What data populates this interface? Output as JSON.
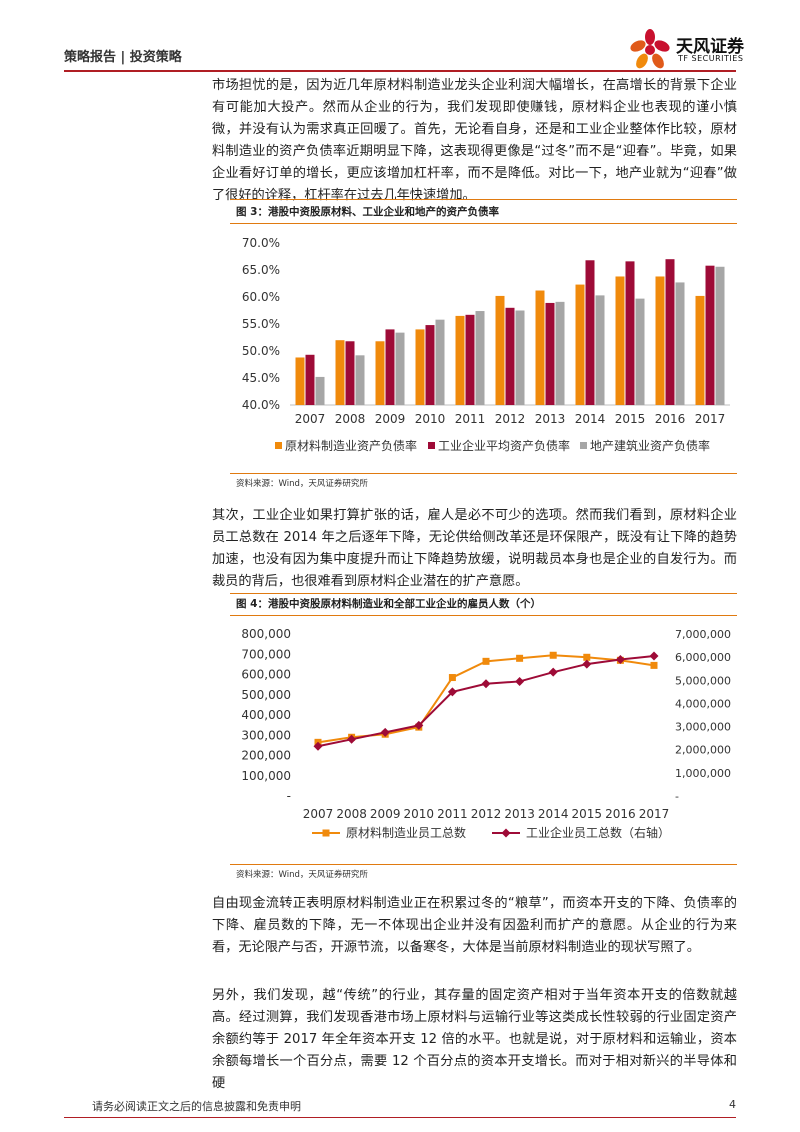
{
  "header": {
    "section": "策略报告 | 投资策略",
    "logo_cn": "天风证券",
    "logo_en": "TF SECURITIES"
  },
  "paragraphs": {
    "p1": "市场担忧的是，因为近几年原材料制造业龙头企业利润大幅增长，在高增长的背景下企业有可能加大投产。然而从企业的行为，我们发现即使赚钱，原材料企业也表现的谨小慎微，并没有认为需求真正回暖了。首先，无论看自身，还是和工业企业整体作比较，原材料制造业的资产负债率近期明显下降，这表现得更像是“过冬”而不是“迎春”。毕竟，如果企业看好订单的增长，更应该增加杠杆率，而不是降低。对比一下，地产业就为“迎春”做了很好的诠释，杠杆率在过去几年快速增加。",
    "p2": "其次，工业企业如果打算扩张的话，雇人是必不可少的选项。然而我们看到，原材料企业员工总数在 2014 年之后逐年下降，无论供给侧改革还是环保限产，既没有让下降的趋势加速，也没有因为集中度提升而让下降趋势放缓，说明裁员本身也是企业的自发行为。而裁员的背后，也很难看到原材料企业潜在的扩产意愿。",
    "p3": "自由现金流转正表明原材料制造业正在积累过冬的“粮草”，而资本开支的下降、负债率的下降、雇员数的下降，无一不体现出企业并没有因盈利而扩产的意愿。从企业的行为来看，无论限产与否，开源节流，以备寒冬，大体是当前原材料制造业的现状写照了。",
    "p4": "另外，我们发现，越“传统”的行业，其存量的固定资产相对于当年资本开支的倍数就越高。经过测算，我们发现香港市场上原材料与运输行业等这类成长性较弱的行业固定资产余额约等于 2017 年全年资本开支 12 倍的水平。也就是说，对于原材料和运输业，资本余额每增长一个百分点，需要 12 个百分点的资本开支增长。而对于相对新兴的半导体和硬"
  },
  "figure3": {
    "title": "图 3：港股中资股原材料、工业企业和地产的资产负债率",
    "source": "资料来源：Wind，天风证券研究所"
  },
  "figure4": {
    "title": "图 4：港股中资股原材料制造业和全部工业企业的雇员人数（个）",
    "source": "资料来源：Wind，天风证券研究所"
  },
  "footer": {
    "disclaimer": "请务必阅读正文之后的信息披露和免责申明",
    "page": "4"
  },
  "chart_data": [
    {
      "type": "bar",
      "categories": [
        "2007",
        "2008",
        "2009",
        "2010",
        "2011",
        "2012",
        "2013",
        "2014",
        "2015",
        "2016",
        "2017"
      ],
      "series": [
        {
          "name": "原材料制造业资产负债率",
          "color": "#f08a0c",
          "values": [
            48.8,
            52.0,
            51.8,
            54.0,
            56.5,
            60.2,
            61.2,
            62.3,
            63.8,
            63.8,
            60.2
          ]
        },
        {
          "name": "工业企业平均资产负债率",
          "color": "#9e0b37",
          "values": [
            49.3,
            51.8,
            54.0,
            54.8,
            56.7,
            58.0,
            58.9,
            66.8,
            66.6,
            67.0,
            65.8
          ]
        },
        {
          "name": "地产建筑业资产负债率",
          "color": "#a6a6a6",
          "values": [
            45.2,
            49.2,
            53.4,
            55.8,
            57.4,
            57.5,
            59.1,
            60.3,
            59.7,
            62.7,
            65.6
          ]
        }
      ],
      "ylim": [
        40,
        70
      ],
      "yticks": [
        "40.0%",
        "45.0%",
        "50.0%",
        "55.0%",
        "60.0%",
        "65.0%",
        "70.0%"
      ],
      "legend": "bottom",
      "grid": false
    },
    {
      "type": "line",
      "categories": [
        "2007",
        "2008",
        "2009",
        "2010",
        "2011",
        "2012",
        "2013",
        "2014",
        "2015",
        "2016",
        "2017"
      ],
      "series": [
        {
          "name": "原材料制造业员工总数",
          "axis": "left",
          "color": "#f08a0c",
          "marker": "square",
          "values": [
            265000,
            290000,
            305000,
            340000,
            585000,
            665000,
            680000,
            695000,
            685000,
            670000,
            645000
          ]
        },
        {
          "name": "工业企业员工总数（右轴）",
          "axis": "right",
          "color": "#9e0b37",
          "marker": "diamond",
          "values": [
            2150000,
            2450000,
            2750000,
            3050000,
            4500000,
            4850000,
            4950000,
            5350000,
            5700000,
            5900000,
            6050000
          ]
        }
      ],
      "y_left_lim": [
        0,
        800000
      ],
      "y_left_ticks": [
        "-",
        "100,000",
        "200,000",
        "300,000",
        "400,000",
        "500,000",
        "600,000",
        "700,000",
        "800,000"
      ],
      "y_right_lim": [
        0,
        7000000
      ],
      "y_right_ticks": [
        "-",
        "1,000,000",
        "2,000,000",
        "3,000,000",
        "4,000,000",
        "5,000,000",
        "6,000,000",
        "7,000,000"
      ],
      "legend": "bottom",
      "grid": false
    }
  ]
}
